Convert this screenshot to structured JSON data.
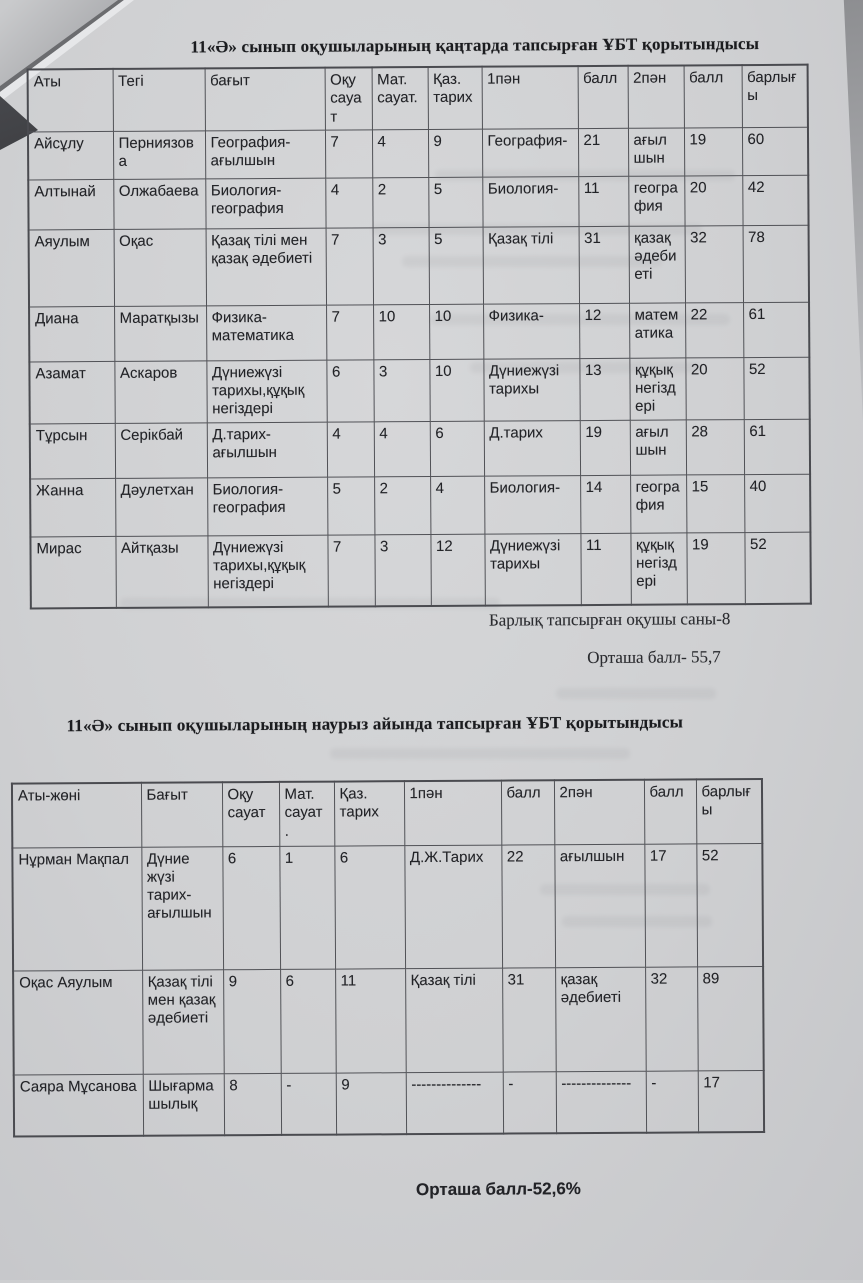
{
  "section1": {
    "title": "11«Ә» сынып оқушыларының қаңтарда тапсырған ҰБТ қорытындысы",
    "total_students_note": "Барлық тапсырған оқушы саны-8",
    "average_score_note": "Орташа балл- 55,7",
    "table": {
      "headers": [
        "Аты",
        "Тегі",
        "бағыт",
        "Оқу сауат",
        "Мат. сауат.",
        "Қаз. тарих",
        "1пән",
        "балл",
        "2пән",
        "балл",
        "барлығы"
      ],
      "rows": [
        [
          "Айсұлу",
          "Перниязова",
          "География-ағылшын",
          "7",
          "4",
          "9",
          "География-",
          "21",
          "ағылшын",
          "19",
          "60"
        ],
        [
          "Алтынай",
          "Олжабаева",
          "Биология-география",
          "4",
          "2",
          "5",
          "Биология-",
          "11",
          "география",
          "20",
          "42"
        ],
        [
          "Аяулым",
          "Оқас",
          "Қазақ тілі мен қазақ әдебиеті",
          "7",
          "3",
          "5",
          "Қазақ тілі",
          "31",
          "қазақ әдебиеті",
          "32",
          "78"
        ],
        [
          "Диана",
          "Маратқызы",
          "Физика-математика",
          "7",
          "10",
          "10",
          "Физика-",
          "12",
          "математика",
          "22",
          "61"
        ],
        [
          "Азамат",
          "Аскаров",
          "Дүниежүзі тарихы,құқық негіздері",
          "6",
          "3",
          "10",
          "Дүниежүзі тарихы",
          "13",
          "құқық негіздері",
          "20",
          "52"
        ],
        [
          "Тұрсын",
          "Серікбай",
          "Д.тарих-ағылшын",
          "4",
          "4",
          "6",
          "Д.тарих",
          "19",
          "ағылшын",
          "28",
          "61"
        ],
        [
          "Жанна",
          "Дәулетхан",
          "Биология-география",
          "5",
          "2",
          "4",
          "Биология-",
          "14",
          "география",
          "15",
          "40"
        ],
        [
          "Мирас",
          "Айтқазы",
          "Дүниежүзі тарихы,құқық негіздері",
          "7",
          "3",
          "12",
          "Дүниежүзі тарихы",
          "11",
          "құқық негіздері",
          "19",
          "52"
        ]
      ]
    }
  },
  "section2": {
    "title": "11«Ә» сынып оқушыларының наурыз айында тапсырған ҰБТ қорытындысы",
    "average_score_note": "Орташа балл-52,6%",
    "table": {
      "headers": [
        "Аты-жөні",
        "Бағыт",
        "Оқу сауат",
        "Мат. сауат .",
        "Қаз. тарих",
        "1пән",
        "балл",
        "2пән",
        "балл",
        "барлығы"
      ],
      "rows": [
        [
          "Нұрман Мақпал",
          "Дүние жүзі тарих-ағылшын",
          "6",
          "1",
          "6",
          "Д.Ж.Тарих",
          "22",
          "ағылшын",
          "17",
          "52"
        ],
        [
          "Оқас Аяулым",
          "Қазақ тілі мен қазақ әдебиеті",
          "9",
          "6",
          "11",
          "Қазақ тілі",
          "31",
          "қазақ әдебиеті",
          "32",
          "89"
        ],
        [
          "Саяра Мұсанова",
          "Шығармашылық",
          "8",
          "-",
          "9",
          "--------------",
          "-",
          "--------------",
          "-",
          "17"
        ]
      ]
    }
  }
}
